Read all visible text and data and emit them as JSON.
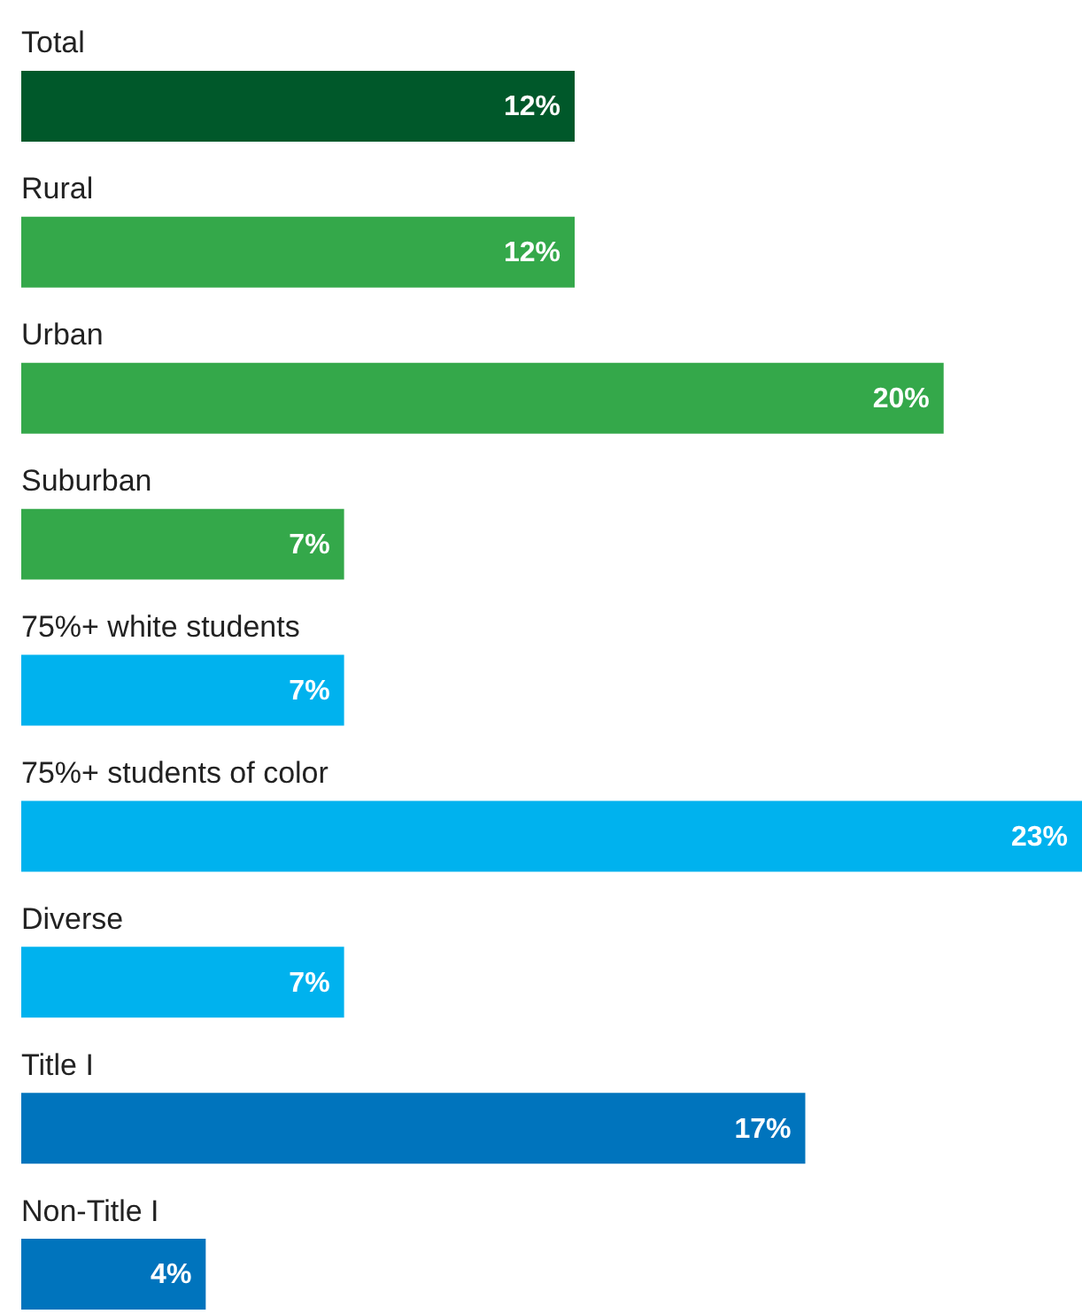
{
  "chart_data": {
    "type": "bar",
    "orientation": "horizontal",
    "categories": [
      "Total",
      "Rural",
      "Urban",
      "Suburban",
      "75%+ white students",
      "75%+ students of color",
      "Diverse",
      "Title I",
      "Non-Title I"
    ],
    "values": [
      12,
      12,
      20,
      7,
      7,
      23,
      7,
      17,
      4
    ],
    "colors": [
      "#00582a",
      "#34a84a",
      "#34a84a",
      "#34a84a",
      "#00b2ee",
      "#00b2ee",
      "#00b2ee",
      "#0074bd",
      "#0074bd"
    ],
    "value_labels": [
      "12%",
      "12%",
      "20%",
      "7%",
      "7%",
      "23%",
      "7%",
      "17%",
      "4%"
    ]
  }
}
